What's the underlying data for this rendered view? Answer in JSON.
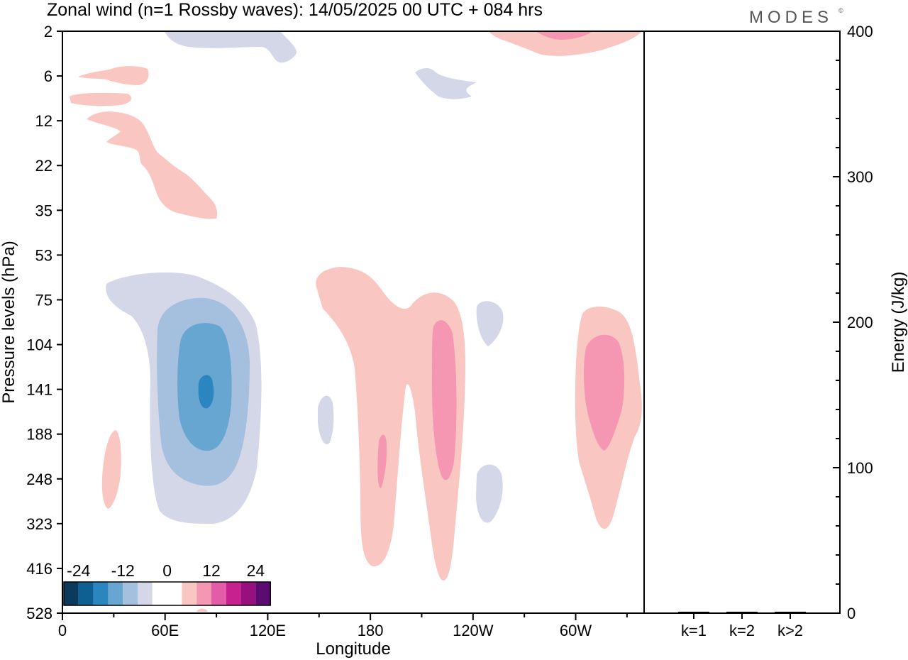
{
  "header": {
    "title": "Zonal wind (n=1 Rossby waves):  14/05/2025  00 UTC  + 084 hrs",
    "brand": "MODES",
    "brand_mark": "©"
  },
  "chart_data": [
    {
      "type": "heatmap",
      "title": "Zonal wind (n=1 Rossby waves):  14/05/2025  00 UTC  + 084 hrs",
      "xlabel": "Longitude",
      "ylabel": "Pressure levels (hPa)",
      "x_ticks": [
        "0",
        "60E",
        "120E",
        "180",
        "120W",
        "60W"
      ],
      "x_tick_values": [
        0,
        60,
        120,
        180,
        240,
        300
      ],
      "xlim": [
        0,
        340
      ],
      "y_ticks": [
        "2",
        "6",
        "12",
        "22",
        "35",
        "53",
        "75",
        "104",
        "141",
        "188",
        "248",
        "323",
        "416",
        "528"
      ],
      "colorbar": {
        "tick_labels": [
          "-24",
          "-12",
          "0",
          "12",
          "24"
        ],
        "colors": [
          "#0b3a5c",
          "#0d5f94",
          "#2b86c0",
          "#66a6d0",
          "#a5bfdf",
          "#d4d7e8",
          "#ffffff",
          "#ffffff",
          "#f9c6c2",
          "#f597b2",
          "#e25ca7",
          "#c7208f",
          "#97107e",
          "#5a0c70"
        ]
      },
      "features": [
        {
          "sign": "negative",
          "peak_level": "-18",
          "lon": 85,
          "pressure": 141
        },
        {
          "sign": "positive",
          "peak_level": "12",
          "lon": 220,
          "pressure": 141
        },
        {
          "sign": "positive",
          "peak_level": "12",
          "lon": 315,
          "pressure": 141
        },
        {
          "sign": "positive",
          "peak_level": "12",
          "lon": 290,
          "pressure": 2
        }
      ]
    },
    {
      "type": "bar",
      "categories": [
        "k=1",
        "k=2",
        "k>2"
      ],
      "values": [
        0.5,
        0.5,
        0.5
      ],
      "ylabel": "Energy (J/kg)",
      "ylim": [
        0,
        400
      ],
      "y_ticks": [
        "0",
        "100",
        "200",
        "300",
        "400"
      ]
    }
  ]
}
